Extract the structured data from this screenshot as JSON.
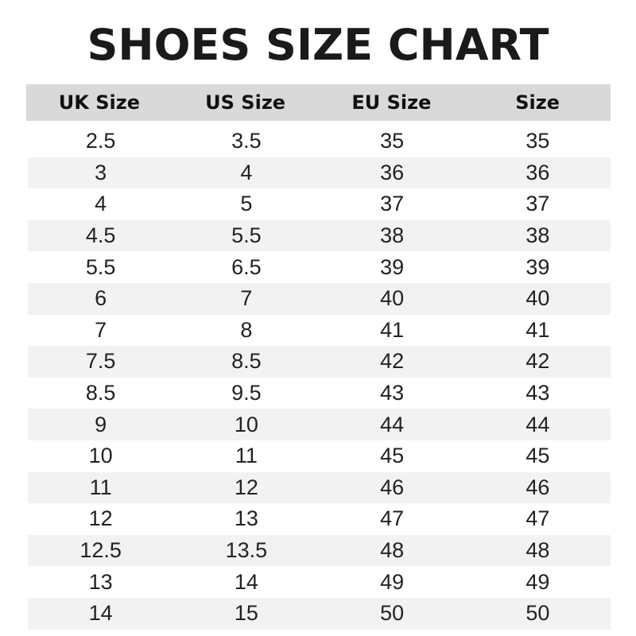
{
  "title": "SHOES SIZE CHART",
  "headers": [
    "UK Size",
    "US Size",
    "EU Size",
    "Size"
  ],
  "rows": [
    [
      "2.5",
      "3.5",
      "35",
      "35"
    ],
    [
      "3",
      "4",
      "36",
      "36"
    ],
    [
      "4",
      "5",
      "37",
      "37"
    ],
    [
      "4.5",
      "5.5",
      "38",
      "38"
    ],
    [
      "5.5",
      "6.5",
      "39",
      "39"
    ],
    [
      "6",
      "7",
      "40",
      "40"
    ],
    [
      "7",
      "8",
      "41",
      "41"
    ],
    [
      "7.5",
      "8.5",
      "42",
      "42"
    ],
    [
      "8.5",
      "9.5",
      "43",
      "43"
    ],
    [
      "9",
      "10",
      "44",
      "44"
    ],
    [
      "10",
      "11",
      "45",
      "45"
    ],
    [
      "11",
      "12",
      "46",
      "46"
    ],
    [
      "12",
      "13",
      "47",
      "47"
    ],
    [
      "12.5",
      "13.5",
      "48",
      "48"
    ],
    [
      "13",
      "14",
      "49",
      "49"
    ],
    [
      "14",
      "15",
      "50",
      "50"
    ]
  ],
  "colors": {
    "header_bg": "#d9d9d9",
    "stripe_bg": "#f2f2f2",
    "text": "#111111"
  }
}
